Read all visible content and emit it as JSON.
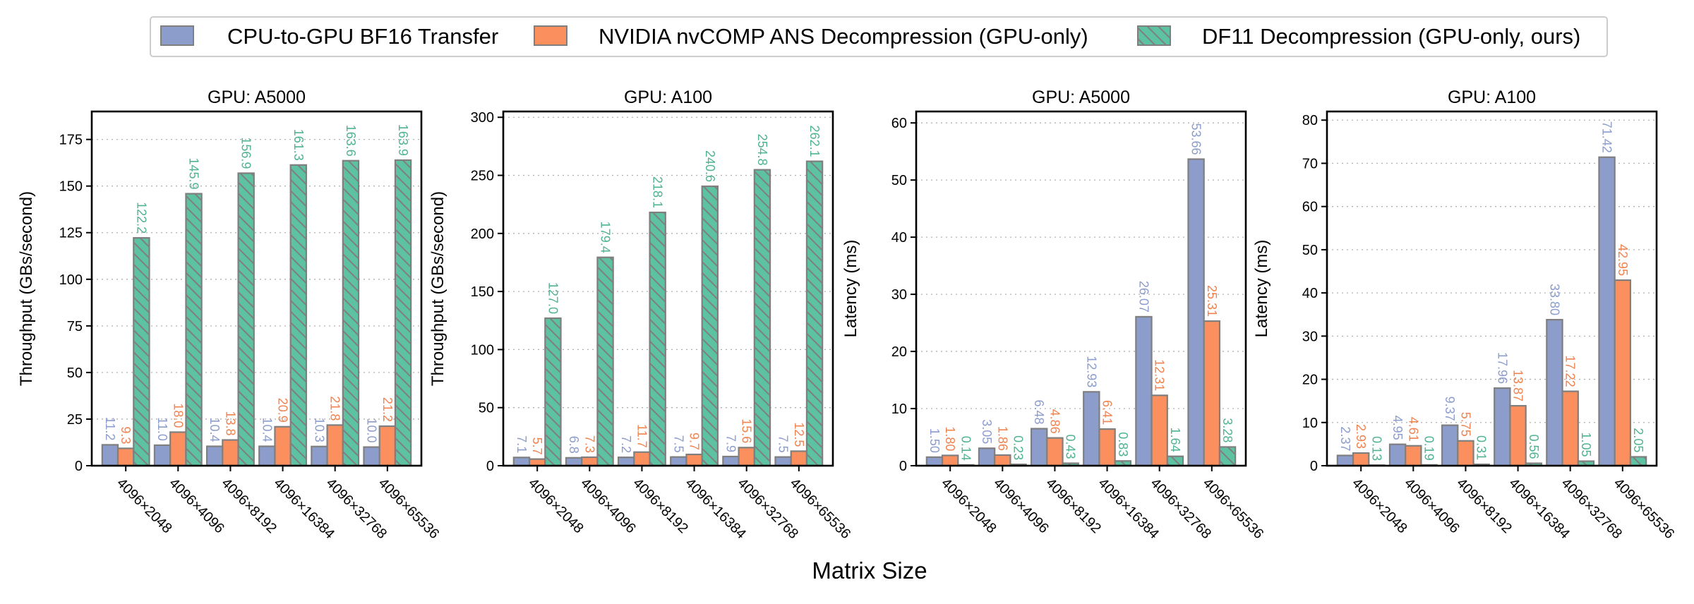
{
  "colors": {
    "series": [
      "#8c9dcc",
      "#fb8f5e",
      "#5dc2a1"
    ],
    "series_edge": "#7f7f7f",
    "label_colors": [
      "#8c9dcc",
      "#f0834f",
      "#4fb38f"
    ],
    "hatch_line": "#7f7f7f",
    "grid": "#b0b0b0"
  },
  "legend": {
    "items": [
      "CPU-to-GPU BF16 Transfer",
      "NVIDIA nvCOMP ANS Decompression (GPU-only)",
      "DF11 Decompression (GPU-only, ours)"
    ]
  },
  "figure": {
    "xlabel": "Matrix Size"
  },
  "chart_data": [
    {
      "type": "bar",
      "title": "GPU: A5000",
      "ylabel": "Throughput (GBs/second)",
      "ylim": [
        0,
        190
      ],
      "yticks": [
        0,
        25,
        50,
        75,
        100,
        125,
        150,
        175
      ],
      "grid": true,
      "categories": [
        "4096×2048",
        "4096×4096",
        "4096×8192",
        "4096×16384",
        "4096×32768",
        "4096×65536"
      ],
      "series": [
        {
          "name": "CPU-to-GPU BF16 Transfer",
          "values": [
            11.2,
            11.0,
            10.4,
            10.4,
            10.3,
            10.0
          ],
          "labels": [
            "11.2",
            "11.0",
            "10.4",
            "10.4",
            "10.3",
            "10.0"
          ]
        },
        {
          "name": "NVIDIA nvCOMP ANS Decompression (GPU-only)",
          "values": [
            9.3,
            18.0,
            13.8,
            20.9,
            21.8,
            21.2
          ],
          "labels": [
            "9.3",
            "18.0",
            "13.8",
            "20.9",
            "21.8",
            "21.2"
          ]
        },
        {
          "name": "DF11 Decompression (GPU-only, ours)",
          "values": [
            122.2,
            145.9,
            156.9,
            161.3,
            163.6,
            163.9
          ],
          "labels": [
            "122.2",
            "145.9",
            "156.9",
            "161.3",
            "163.6",
            "163.9"
          ]
        }
      ]
    },
    {
      "type": "bar",
      "title": "GPU: A100",
      "ylabel": "Throughput (GBs/second)",
      "ylim": [
        0,
        305
      ],
      "yticks": [
        0,
        50,
        100,
        150,
        200,
        250,
        300
      ],
      "grid": true,
      "categories": [
        "4096×2048",
        "4096×4096",
        "4096×8192",
        "4096×16384",
        "4096×32768",
        "4096×65536"
      ],
      "series": [
        {
          "name": "CPU-to-GPU BF16 Transfer",
          "values": [
            7.1,
            6.8,
            7.2,
            7.5,
            7.9,
            7.5
          ],
          "labels": [
            "7.1",
            "6.8",
            "7.2",
            "7.5",
            "7.9",
            "7.5"
          ]
        },
        {
          "name": "NVIDIA nvCOMP ANS Decompression (GPU-only)",
          "values": [
            5.7,
            7.3,
            11.7,
            9.7,
            15.6,
            12.5
          ],
          "labels": [
            "5.7",
            "7.3",
            "11.7",
            "9.7",
            "15.6",
            "12.5"
          ]
        },
        {
          "name": "DF11 Decompression (GPU-only, ours)",
          "values": [
            127.0,
            179.4,
            218.1,
            240.6,
            254.8,
            262.1
          ],
          "labels": [
            "127.0",
            "179.4",
            "218.1",
            "240.6",
            "254.8",
            "262.1"
          ]
        }
      ]
    },
    {
      "type": "bar",
      "title": "GPU: A5000",
      "ylabel": "Latency (ms)",
      "ylim": [
        0,
        62
      ],
      "yticks": [
        0,
        10,
        20,
        30,
        40,
        50,
        60
      ],
      "grid": true,
      "categories": [
        "4096×2048",
        "4096×4096",
        "4096×8192",
        "4096×16384",
        "4096×32768",
        "4096×65536"
      ],
      "series": [
        {
          "name": "CPU-to-GPU BF16 Transfer",
          "values": [
            1.5,
            3.05,
            6.48,
            12.93,
            26.07,
            53.66
          ],
          "labels": [
            "1.50",
            "3.05",
            "6.48",
            "12.93",
            "26.07",
            "53.66"
          ]
        },
        {
          "name": "NVIDIA nvCOMP ANS Decompression (GPU-only)",
          "values": [
            1.8,
            1.86,
            4.86,
            6.41,
            12.31,
            25.31
          ],
          "labels": [
            "1.80",
            "1.86",
            "4.86",
            "6.41",
            "12.31",
            "25.31"
          ]
        },
        {
          "name": "DF11 Decompression (GPU-only, ours)",
          "values": [
            0.14,
            0.23,
            0.43,
            0.83,
            1.64,
            3.28
          ],
          "labels": [
            "0.14",
            "0.23",
            "0.43",
            "0.83",
            "1.64",
            "3.28"
          ]
        }
      ]
    },
    {
      "type": "bar",
      "title": "GPU: A100",
      "ylabel": "Latency (ms)",
      "ylim": [
        0,
        82
      ],
      "yticks": [
        0,
        10,
        20,
        30,
        40,
        50,
        60,
        70,
        80
      ],
      "grid": true,
      "categories": [
        "4096×2048",
        "4096×4096",
        "4096×8192",
        "4096×16384",
        "4096×32768",
        "4096×65536"
      ],
      "series": [
        {
          "name": "CPU-to-GPU BF16 Transfer",
          "values": [
            2.37,
            4.95,
            9.37,
            17.96,
            33.8,
            71.42
          ],
          "labels": [
            "2.37",
            "4.95",
            "9.37",
            "17.96",
            "33.80",
            "71.42"
          ]
        },
        {
          "name": "NVIDIA nvCOMP ANS Decompression (GPU-only)",
          "values": [
            2.93,
            4.61,
            5.75,
            13.87,
            17.22,
            42.95
          ],
          "labels": [
            "2.93",
            "4.61",
            "5.75",
            "13.87",
            "17.22",
            "42.95"
          ]
        },
        {
          "name": "DF11 Decompression (GPU-only, ours)",
          "values": [
            0.13,
            0.19,
            0.31,
            0.56,
            1.05,
            2.05
          ],
          "labels": [
            "0.13",
            "0.19",
            "0.31",
            "0.56",
            "1.05",
            "2.05"
          ]
        }
      ]
    }
  ]
}
